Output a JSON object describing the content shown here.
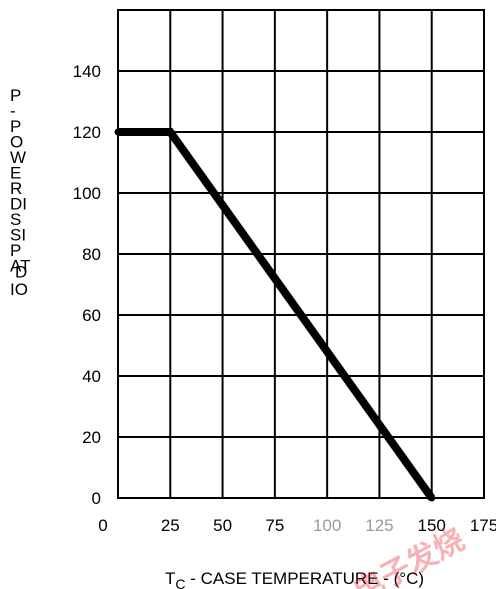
{
  "chart_data": {
    "type": "line",
    "xlabel_prefix": "T",
    "xlabel_sub": "C",
    "xlabel_rest": " - CASE TEMPERATURE - (°C)",
    "ylabel_lines": [
      "P",
      "-",
      "P",
      "O",
      "W",
      "E",
      "R",
      "DI",
      "S",
      "SI",
      "P",
      "AT",
      "D",
      "IO"
    ],
    "xlim": [
      0,
      175
    ],
    "ylim": [
      0,
      160
    ],
    "x_ticks": [
      0,
      25,
      50,
      75,
      100,
      125,
      150,
      175
    ],
    "y_ticks": [
      0,
      20,
      40,
      60,
      80,
      100,
      120,
      140
    ],
    "grid": true,
    "series": [
      {
        "x": [
          0,
          25,
          150
        ],
        "y": [
          120,
          120,
          0
        ]
      }
    ]
  }
}
